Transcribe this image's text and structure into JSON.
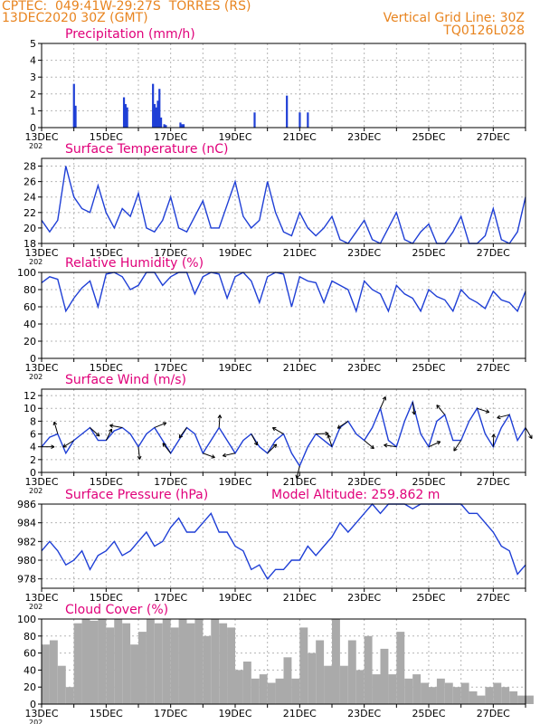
{
  "header": {
    "line1_left": "CPTEC:  049:41W-29:27S  TORRES (RS)",
    "line2_left": "13DEC2020 30Z (GMT)",
    "line1_right": "Vertical Grid Line: 30Z",
    "line2_right": "TQ0126L028"
  },
  "colors": {
    "title": "#e0007a",
    "header": "#e8841f",
    "line": "#1f3fd6",
    "cloud": "#aaaaaa",
    "grid": "#b5b5b5"
  },
  "x_tick_labels": [
    "13DEC",
    "15DEC",
    "17DEC",
    "19DEC",
    "21DEC",
    "23DEC",
    "25DEC",
    "27DEC"
  ],
  "x_year_stub": "202",
  "chart_data": [
    {
      "id": "precip",
      "type": "bar",
      "title": "Precipitation (mm/h)",
      "extra_title": "",
      "ylim": [
        0,
        5
      ],
      "yticks": [
        0,
        1,
        2,
        3,
        4,
        5
      ],
      "x_days": [
        1.0,
        1.05,
        2.55,
        2.6,
        2.65,
        3.45,
        3.5,
        3.55,
        3.6,
        3.65,
        3.7,
        3.8,
        3.85,
        4.3,
        4.35,
        4.4,
        6.6,
        7.6,
        8.0,
        8.25
      ],
      "values": [
        2.6,
        1.3,
        1.8,
        1.4,
        1.2,
        2.6,
        1.4,
        1.2,
        1.6,
        2.3,
        0.6,
        0.2,
        0.15,
        0.3,
        0.2,
        0.2,
        0.9,
        1.9,
        0.9,
        0.9
      ]
    },
    {
      "id": "temp",
      "type": "line",
      "title": "Surface Temperature (nC)",
      "extra_title": "",
      "ylim": [
        18,
        29
      ],
      "yticks": [
        18,
        20,
        22,
        24,
        26,
        28
      ],
      "x_days": [
        0,
        0.25,
        0.5,
        0.75,
        1,
        1.25,
        1.5,
        1.75,
        2,
        2.25,
        2.5,
        2.75,
        3,
        3.25,
        3.5,
        3.75,
        4,
        4.25,
        4.5,
        4.75,
        5,
        5.25,
        5.5,
        5.75,
        6,
        6.25,
        6.5,
        6.75,
        7,
        7.25,
        7.5,
        7.75,
        8,
        8.25,
        8.5,
        8.75,
        9,
        9.25,
        9.5,
        9.75,
        10,
        10.25,
        10.5,
        10.75,
        11,
        11.25,
        11.5,
        11.75,
        12,
        12.25,
        12.5,
        12.75,
        13,
        13.25,
        13.5,
        13.75,
        14,
        14.25,
        14.5,
        14.75,
        15
      ],
      "values": [
        21,
        19.5,
        21,
        28,
        24,
        22.5,
        22,
        25.5,
        22,
        20,
        22.5,
        21.5,
        24.5,
        20,
        19.5,
        21,
        24,
        20,
        19.5,
        21.5,
        23.5,
        20,
        20,
        23,
        26,
        21.5,
        20,
        21,
        26,
        22,
        19.5,
        19,
        22,
        20,
        19,
        20,
        21.5,
        18.5,
        18,
        19.5,
        21,
        18.5,
        18,
        20,
        22,
        18.5,
        18,
        19.5,
        20.5,
        18,
        18,
        19.5,
        21.5,
        18,
        18,
        19,
        22.5,
        18.5,
        18,
        19.5,
        24
      ]
    },
    {
      "id": "rh",
      "type": "line",
      "title": "Relative Humidity (%)",
      "extra_title": "",
      "ylim": [
        0,
        100
      ],
      "yticks": [
        0,
        20,
        40,
        60,
        80,
        100
      ],
      "x_days": [
        0,
        0.25,
        0.5,
        0.75,
        1,
        1.25,
        1.5,
        1.75,
        2,
        2.25,
        2.5,
        2.75,
        3,
        3.25,
        3.5,
        3.75,
        4,
        4.25,
        4.5,
        4.75,
        5,
        5.25,
        5.5,
        5.75,
        6,
        6.25,
        6.5,
        6.75,
        7,
        7.25,
        7.5,
        7.75,
        8,
        8.25,
        8.5,
        8.75,
        9,
        9.25,
        9.5,
        9.75,
        10,
        10.25,
        10.5,
        10.75,
        11,
        11.25,
        11.5,
        11.75,
        12,
        12.25,
        12.5,
        12.75,
        13,
        13.25,
        13.5,
        13.75,
        14,
        14.25,
        14.5,
        14.75,
        15
      ],
      "values": [
        88,
        95,
        92,
        55,
        70,
        82,
        90,
        60,
        98,
        100,
        95,
        80,
        85,
        100,
        100,
        85,
        95,
        100,
        100,
        75,
        95,
        100,
        98,
        70,
        95,
        100,
        90,
        65,
        95,
        100,
        98,
        60,
        95,
        90,
        88,
        65,
        90,
        85,
        80,
        55,
        90,
        80,
        75,
        55,
        85,
        75,
        70,
        55,
        80,
        72,
        68,
        55,
        80,
        70,
        65,
        58,
        78,
        68,
        65,
        55,
        78
      ]
    },
    {
      "id": "wind",
      "type": "line",
      "title": "Surface Wind (m/s)",
      "extra_title": "",
      "ylim": [
        0,
        13
      ],
      "yticks": [
        0,
        2,
        4,
        6,
        8,
        10,
        12
      ],
      "x_days": [
        0,
        0.25,
        0.5,
        0.75,
        1,
        1.25,
        1.5,
        1.75,
        2,
        2.25,
        2.5,
        2.75,
        3,
        3.25,
        3.5,
        3.75,
        4,
        4.25,
        4.5,
        4.75,
        5,
        5.25,
        5.5,
        5.75,
        6,
        6.25,
        6.5,
        6.75,
        7,
        7.25,
        7.5,
        7.75,
        8,
        8.25,
        8.5,
        8.75,
        9,
        9.25,
        9.5,
        9.75,
        10,
        10.25,
        10.5,
        10.75,
        11,
        11.25,
        11.5,
        11.75,
        12,
        12.25,
        12.5,
        12.75,
        13,
        13.25,
        13.5,
        13.75,
        14,
        14.25,
        14.5,
        14.75,
        15
      ],
      "values": [
        4,
        5.5,
        6,
        3,
        5,
        6,
        7,
        5,
        5,
        6.5,
        7,
        6,
        4,
        6,
        7,
        5,
        3,
        5,
        7,
        6,
        3,
        5,
        7,
        5,
        3,
        5,
        6,
        4,
        3,
        5,
        6,
        3,
        1,
        4,
        6,
        5,
        4,
        7,
        8,
        6,
        5,
        7,
        10,
        5,
        4,
        8,
        11,
        6,
        4,
        8,
        9,
        5,
        5,
        8,
        10,
        6,
        4,
        7,
        9,
        5,
        7
      ]
    },
    {
      "id": "pres",
      "type": "line",
      "title": "Surface Pressure (hPa)",
      "extra_title": "Model Altitude: 259.862 m",
      "ylim": [
        977,
        986
      ],
      "yticks": [
        978,
        980,
        982,
        984,
        986
      ],
      "x_days": [
        0,
        0.25,
        0.5,
        0.75,
        1,
        1.25,
        1.5,
        1.75,
        2,
        2.25,
        2.5,
        2.75,
        3,
        3.25,
        3.5,
        3.75,
        4,
        4.25,
        4.5,
        4.75,
        5,
        5.25,
        5.5,
        5.75,
        6,
        6.25,
        6.5,
        6.75,
        7,
        7.25,
        7.5,
        7.75,
        8,
        8.25,
        8.5,
        8.75,
        9,
        9.25,
        9.5,
        9.75,
        10,
        10.25,
        10.5,
        10.75,
        11,
        11.25,
        11.5,
        11.75,
        12,
        12.25,
        12.5,
        12.75,
        13,
        13.25,
        13.5,
        13.75,
        14,
        14.25,
        14.5,
        14.75,
        15
      ],
      "values": [
        981,
        982,
        981,
        979.5,
        980,
        981,
        979,
        980.5,
        981,
        982,
        980.5,
        981,
        982,
        983,
        981.5,
        982,
        983.5,
        984.5,
        983,
        983,
        984,
        985,
        983,
        983,
        981.5,
        981,
        979,
        979.5,
        978,
        979,
        979,
        980,
        980,
        981.5,
        980.5,
        981.5,
        982.5,
        984,
        983,
        984,
        985,
        986,
        985,
        986,
        986,
        986,
        985.5,
        986,
        986,
        986,
        986,
        986,
        986,
        985,
        985,
        984,
        983,
        981.5,
        981,
        978.5,
        979.5
      ]
    },
    {
      "id": "cloud",
      "type": "area",
      "title": "Cloud Cover (%)",
      "extra_title": "",
      "ylim": [
        0,
        100
      ],
      "yticks": [
        0,
        20,
        40,
        60,
        80,
        100
      ],
      "x_days": [
        0,
        0.25,
        0.5,
        0.75,
        1,
        1.25,
        1.5,
        1.75,
        2,
        2.25,
        2.5,
        2.75,
        3,
        3.25,
        3.5,
        3.75,
        4,
        4.25,
        4.5,
        4.75,
        5,
        5.25,
        5.5,
        5.75,
        6,
        6.25,
        6.5,
        6.75,
        7,
        7.25,
        7.5,
        7.75,
        8,
        8.25,
        8.5,
        8.75,
        9,
        9.25,
        9.5,
        9.75,
        10,
        10.25,
        10.5,
        10.75,
        11,
        11.25,
        11.5,
        11.75,
        12,
        12.25,
        12.5,
        12.75,
        13,
        13.25,
        13.5,
        13.75,
        14,
        14.25,
        14.5,
        14.75,
        15
      ],
      "values": [
        70,
        75,
        45,
        20,
        95,
        100,
        98,
        100,
        90,
        100,
        95,
        70,
        85,
        100,
        95,
        100,
        90,
        100,
        95,
        100,
        80,
        100,
        95,
        90,
        40,
        50,
        30,
        35,
        25,
        30,
        55,
        30,
        90,
        60,
        75,
        45,
        100,
        45,
        75,
        40,
        80,
        35,
        65,
        35,
        85,
        30,
        35,
        25,
        20,
        30,
        25,
        20,
        25,
        15,
        10,
        20,
        25,
        20,
        15,
        10,
        10
      ]
    }
  ]
}
